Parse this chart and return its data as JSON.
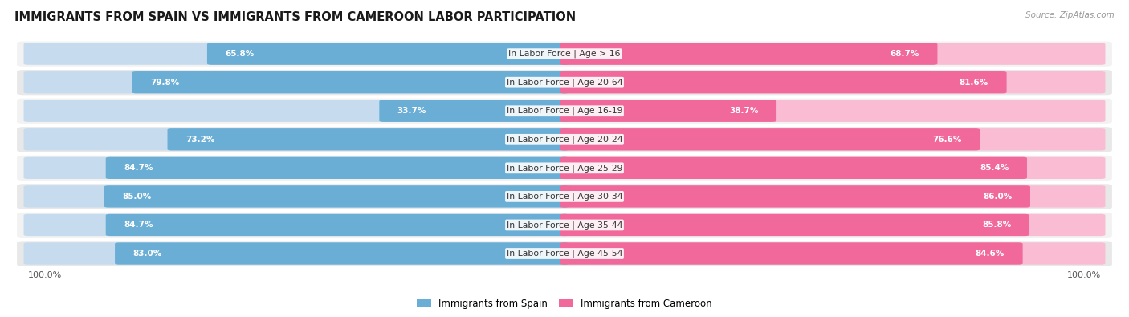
{
  "title": "IMMIGRANTS FROM SPAIN VS IMMIGRANTS FROM CAMEROON LABOR PARTICIPATION",
  "source": "Source: ZipAtlas.com",
  "categories": [
    "In Labor Force | Age > 16",
    "In Labor Force | Age 20-64",
    "In Labor Force | Age 16-19",
    "In Labor Force | Age 20-24",
    "In Labor Force | Age 25-29",
    "In Labor Force | Age 30-34",
    "In Labor Force | Age 35-44",
    "In Labor Force | Age 45-54"
  ],
  "spain_values": [
    65.8,
    79.8,
    33.7,
    73.2,
    84.7,
    85.0,
    84.7,
    83.0
  ],
  "cameroon_values": [
    68.7,
    81.6,
    38.7,
    76.6,
    85.4,
    86.0,
    85.8,
    84.6
  ],
  "spain_color": "#6aaed6",
  "cameroon_color": "#f0699a",
  "spain_color_light": "#c6dcee",
  "cameroon_color_light": "#f9bcd3",
  "row_bg": "#f2f2f2",
  "row_bg_alt": "#e8e8e8",
  "max_val": 100.0,
  "legend_spain": "Immigrants from Spain",
  "legend_cameroon": "Immigrants from Cameroon",
  "title_fontsize": 10.5,
  "source_fontsize": 7.5,
  "label_fontsize": 7.8,
  "value_fontsize": 7.5,
  "bottom_label": "100.0%"
}
